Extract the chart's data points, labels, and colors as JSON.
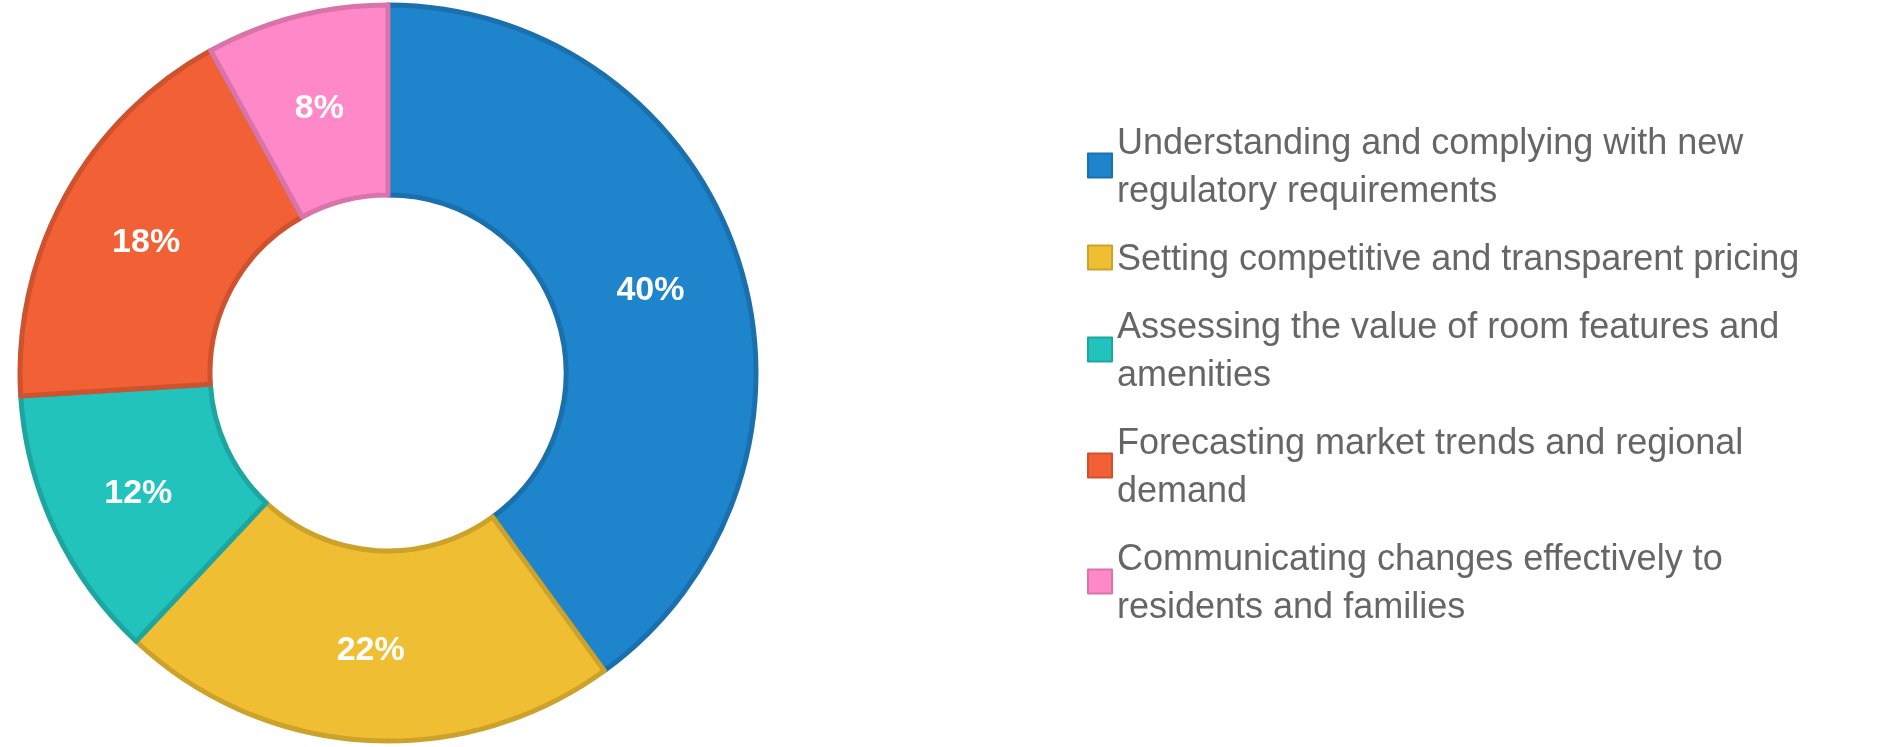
{
  "chart_data": {
    "type": "donut",
    "categories": [
      "Understanding and complying with new regulatory requirements",
      "Setting competitive and transparent pricing",
      "Assessing the value of room features and amenities",
      "Forecasting market trends and regional demand",
      "Communicating changes effectively to residents and families"
    ],
    "values": [
      40,
      22,
      12,
      18,
      8
    ],
    "colors": [
      "#1e84cc",
      "#f0be32",
      "#22c3bc",
      "#f26035",
      "#fe88c8"
    ],
    "value_labels": [
      "40%",
      "22%",
      "12%",
      "18%",
      "8%"
    ],
    "legend": "right"
  }
}
